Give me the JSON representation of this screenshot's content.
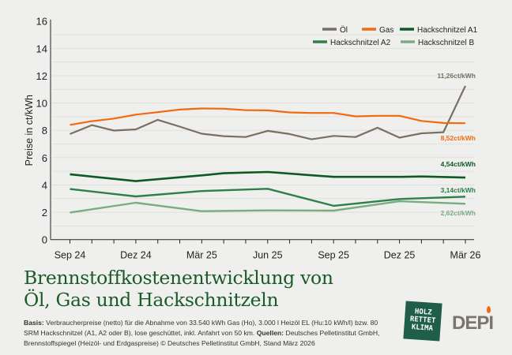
{
  "chart_data": {
    "type": "line",
    "ylabel": "Preise in ct/kWh",
    "ylim": [
      0,
      16
    ],
    "yticks": [
      0,
      2,
      4,
      6,
      8,
      10,
      12,
      14,
      16
    ],
    "x_months": [
      "Sep 24",
      "Okt 24",
      "Nov 24",
      "Dez 24",
      "Jan 25",
      "Feb 25",
      "Mär 25",
      "Apr 25",
      "Mai 25",
      "Jun 25",
      "Jul 25",
      "Aug 25",
      "Sep 25",
      "Okt 25",
      "Nov 25",
      "Dez 25",
      "Jan 26",
      "Feb 26",
      "Mär 26"
    ],
    "xtick_labels": [
      "Sep 24",
      "Dez 24",
      "Mär 25",
      "Jun 25",
      "Sep 25",
      "Dez 25",
      "Mär 26"
    ],
    "grid": true,
    "legend": "top-right",
    "series": [
      {
        "name": "Öl",
        "color": "#7a6f61",
        "width": 2.2,
        "x": [
          0,
          1,
          2,
          3,
          4,
          5,
          6,
          7,
          8,
          9,
          10,
          11,
          12,
          13,
          14,
          15,
          16,
          17,
          18
        ],
        "values": [
          7.73,
          8.38,
          7.98,
          8.07,
          8.77,
          8.27,
          7.75,
          7.57,
          7.51,
          7.96,
          7.73,
          7.34,
          7.59,
          7.51,
          8.19,
          7.46,
          7.78,
          7.86,
          11.26
        ],
        "end_label": "11,26ct/kWh"
      },
      {
        "name": "Gas",
        "color": "#f06a10",
        "width": 2.2,
        "x": [
          0,
          1,
          2,
          3,
          4,
          5,
          6,
          7,
          8,
          9,
          10,
          11,
          12,
          13,
          14,
          15,
          16,
          17,
          18
        ],
        "values": [
          8.4,
          8.67,
          8.86,
          9.15,
          9.33,
          9.52,
          9.6,
          9.58,
          9.48,
          9.46,
          9.31,
          9.27,
          9.27,
          9.02,
          9.06,
          9.06,
          8.69,
          8.54,
          8.52
        ],
        "end_label": "8,52ct/kWh"
      },
      {
        "name": "Hackschnitzel A1",
        "color": "#0d5a24",
        "width": 2.6,
        "x": [
          0,
          3,
          6,
          7,
          9,
          12,
          15,
          16,
          18
        ],
        "values": [
          4.78,
          4.28,
          4.7,
          4.86,
          4.95,
          4.59,
          4.59,
          4.62,
          4.54
        ],
        "end_label": "4,54ct/kWh"
      },
      {
        "name": "Hackschnitzel A2",
        "color": "#2d8048",
        "width": 2.4,
        "x": [
          0,
          3,
          6,
          9,
          12,
          15,
          18
        ],
        "values": [
          3.7,
          3.16,
          3.55,
          3.72,
          2.47,
          2.97,
          3.14
        ],
        "end_label": "3,14ct/kWh"
      },
      {
        "name": "Hackschnitzel B",
        "color": "#7bab82",
        "width": 2.4,
        "x": [
          0,
          3,
          6,
          9,
          12,
          15,
          18
        ],
        "values": [
          1.98,
          2.7,
          2.08,
          2.14,
          2.12,
          2.81,
          2.62
        ],
        "end_label": "2,62ct/kWh"
      }
    ]
  },
  "title_line1": "Brennstoffkostenentwicklung von",
  "title_line2": "Öl, Gas und Hackschnitzeln",
  "note": {
    "basis_label": "Basis:",
    "basis_text": " Verbraucherpreise (netto) für die Abnahme von 33.540 kWh Gas (Ho), 3.000 l Heizöl EL (Hu:10 kWh/l) bzw. 80 SRM Hackschnitzel (A1, A2 oder B), lose geschüttet, inkl. Anfahrt von 50 km. ",
    "sources_label": "Quellen:",
    "sources_text": " Deutsches Pelletinstitut GmbH, Brennstoffspiegel (Heizöl- und Erdgaspreise) © Deutsches Pelletinstitut GmbH, Stand März 2026"
  },
  "logos": {
    "holz": "HOLZ RETTET KLIMA",
    "holz_tag": "Es wächst nach",
    "depi": "DEPI"
  }
}
